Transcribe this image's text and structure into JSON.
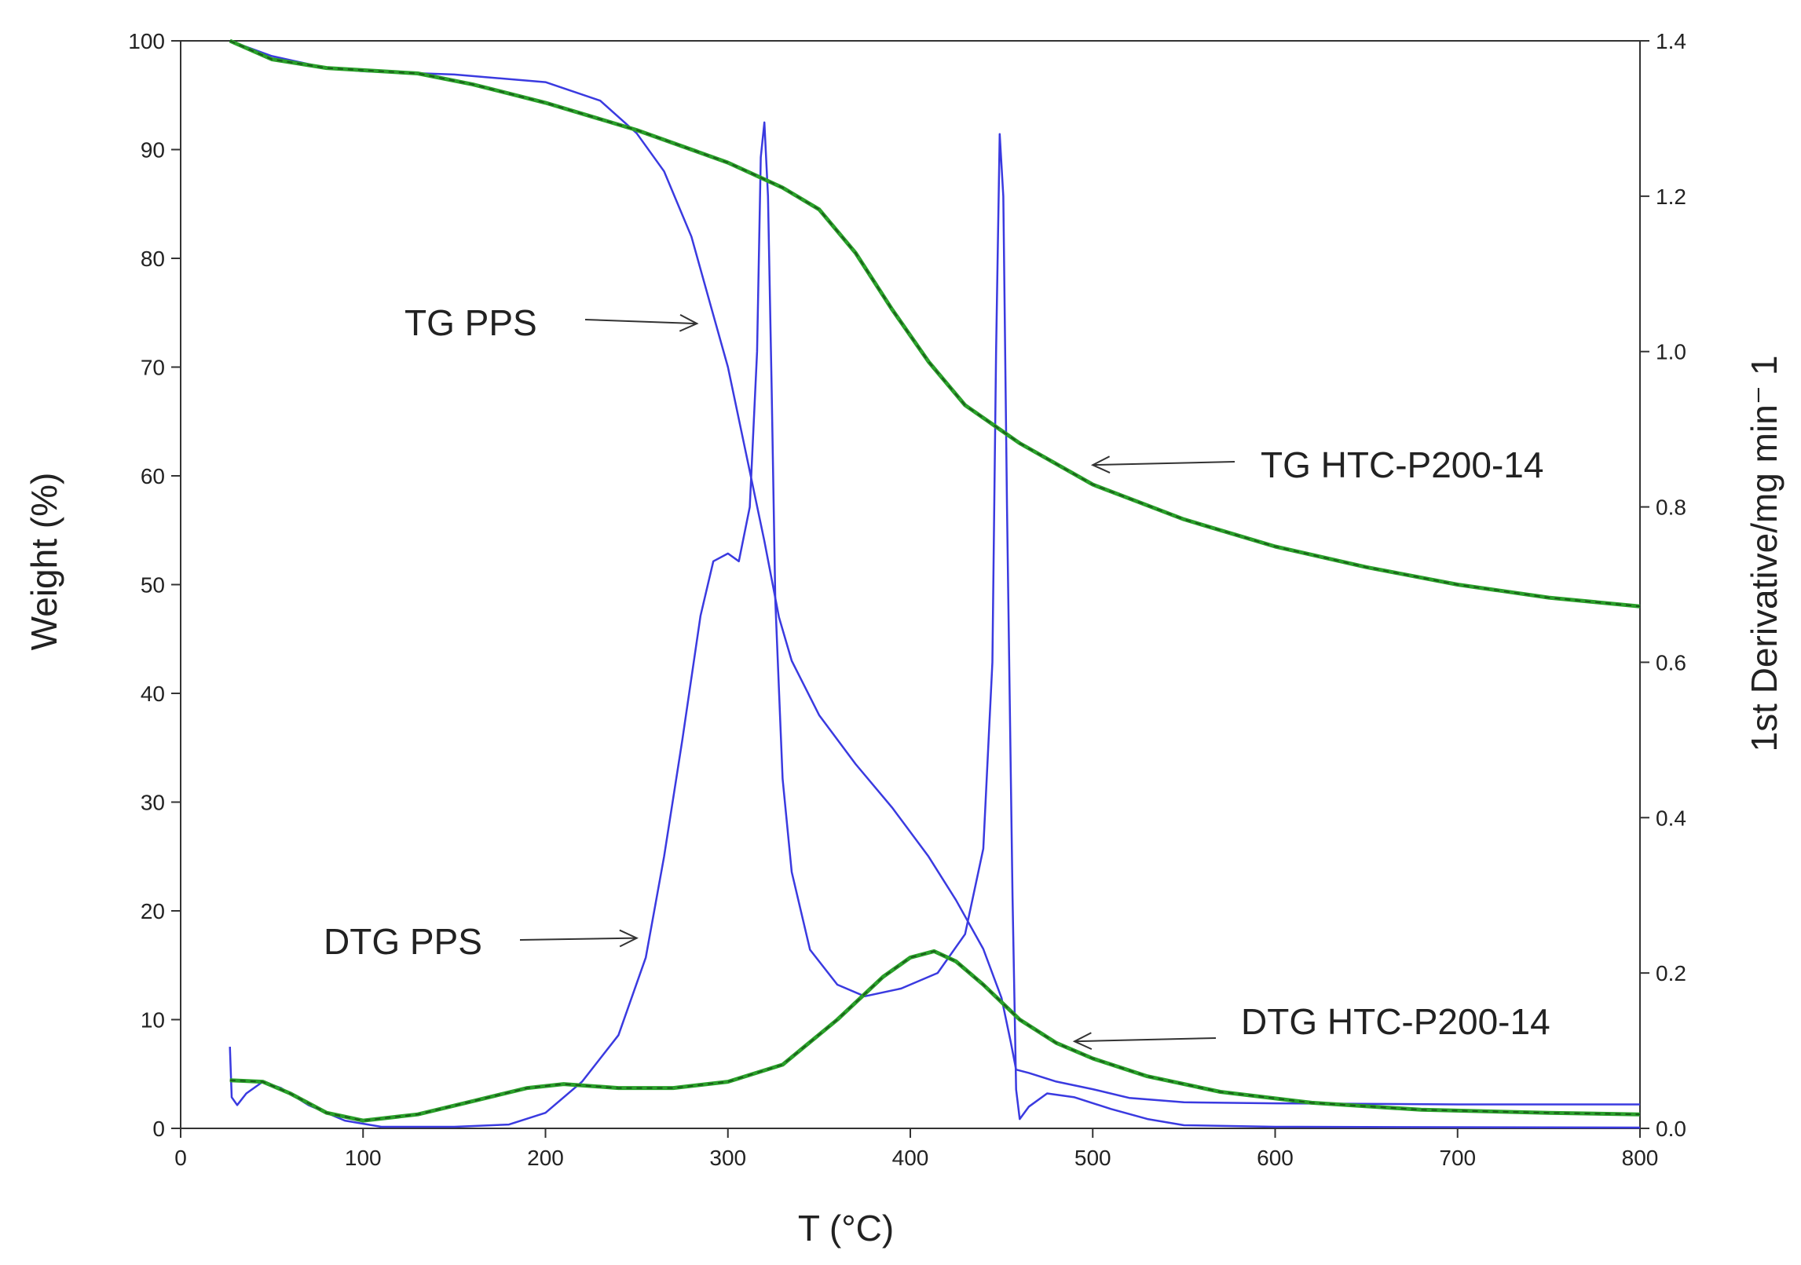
{
  "chart_data": {
    "type": "line",
    "title": "",
    "xlabel": "T (°C)",
    "ylabel": "Weight  (%)",
    "y2label": "1st Derivative/mg min⁻ 1",
    "xlim": [
      0,
      800
    ],
    "ylim": [
      0,
      100
    ],
    "y2lim": [
      0,
      1.4
    ],
    "grid": false,
    "x_ticks": [
      "0",
      "100",
      "200",
      "300",
      "400",
      "500",
      "600",
      "700",
      "800"
    ],
    "y_ticks": [
      "0",
      "10",
      "20",
      "30",
      "40",
      "50",
      "60",
      "70",
      "80",
      "90",
      "100"
    ],
    "y2_ticks": [
      "0.0",
      "0.2",
      "0.4",
      "0.6",
      "0.8",
      "1.0",
      "1.2",
      "1.4"
    ],
    "colors": {
      "pps": "#3a3ae0",
      "htc": "#2aa02a",
      "htc_dash": "#1a5a1a",
      "axis": "#333333",
      "arrow": "#333333"
    },
    "series": [
      {
        "name": "TG PPS",
        "axis": "left",
        "style": "solid",
        "points": [
          [
            27,
            100
          ],
          [
            50,
            98.6
          ],
          [
            80,
            97.5
          ],
          [
            100,
            97.2
          ],
          [
            150,
            96.9
          ],
          [
            200,
            96.2
          ],
          [
            230,
            94.5
          ],
          [
            250,
            91.5
          ],
          [
            265,
            88
          ],
          [
            280,
            82
          ],
          [
            290,
            76
          ],
          [
            300,
            70
          ],
          [
            310,
            62
          ],
          [
            320,
            54
          ],
          [
            328,
            47
          ],
          [
            335,
            43
          ],
          [
            350,
            38
          ],
          [
            370,
            33.5
          ],
          [
            390,
            29.5
          ],
          [
            410,
            25
          ],
          [
            425,
            21
          ],
          [
            440,
            16.5
          ],
          [
            450,
            12
          ],
          [
            455,
            8
          ],
          [
            458,
            5.4
          ],
          [
            465,
            5.1
          ],
          [
            480,
            4.3
          ],
          [
            500,
            3.6
          ],
          [
            520,
            2.8
          ],
          [
            550,
            2.4
          ],
          [
            600,
            2.3
          ],
          [
            700,
            2.2
          ],
          [
            800,
            2.2
          ]
        ]
      },
      {
        "name": "DTG PPS",
        "axis": "right",
        "style": "solid",
        "points": [
          [
            27,
            0.105
          ],
          [
            28,
            0.04
          ],
          [
            31,
            0.03
          ],
          [
            36,
            0.045
          ],
          [
            45,
            0.06
          ],
          [
            55,
            0.052
          ],
          [
            70,
            0.03
          ],
          [
            90,
            0.01
          ],
          [
            110,
            0.002
          ],
          [
            150,
            0.002
          ],
          [
            180,
            0.005
          ],
          [
            200,
            0.02
          ],
          [
            220,
            0.06
          ],
          [
            240,
            0.12
          ],
          [
            255,
            0.22
          ],
          [
            265,
            0.35
          ],
          [
            275,
            0.5
          ],
          [
            285,
            0.66
          ],
          [
            292,
            0.73
          ],
          [
            300,
            0.74
          ],
          [
            306,
            0.73
          ],
          [
            312,
            0.8
          ],
          [
            316,
            1.0
          ],
          [
            318,
            1.25
          ],
          [
            320,
            1.295
          ],
          [
            322,
            1.2
          ],
          [
            324,
            0.95
          ],
          [
            326,
            0.68
          ],
          [
            330,
            0.45
          ],
          [
            335,
            0.33
          ],
          [
            345,
            0.23
          ],
          [
            360,
            0.185
          ],
          [
            375,
            0.17
          ],
          [
            395,
            0.18
          ],
          [
            415,
            0.2
          ],
          [
            430,
            0.25
          ],
          [
            440,
            0.36
          ],
          [
            445,
            0.6
          ],
          [
            447,
            1.0
          ],
          [
            449,
            1.28
          ],
          [
            451,
            1.2
          ],
          [
            453,
            0.8
          ],
          [
            456,
            0.3
          ],
          [
            458,
            0.05
          ],
          [
            460,
            0.012
          ],
          [
            465,
            0.028
          ],
          [
            475,
            0.045
          ],
          [
            490,
            0.04
          ],
          [
            510,
            0.025
          ],
          [
            530,
            0.012
          ],
          [
            550,
            0.004
          ],
          [
            600,
            0.002
          ],
          [
            800,
            0.001
          ]
        ]
      },
      {
        "name": "TG HTC-P200-14",
        "axis": "left",
        "style": "dashed",
        "points": [
          [
            27,
            100
          ],
          [
            50,
            98.3
          ],
          [
            80,
            97.5
          ],
          [
            100,
            97.3
          ],
          [
            130,
            97
          ],
          [
            160,
            96
          ],
          [
            200,
            94.3
          ],
          [
            250,
            91.8
          ],
          [
            300,
            88.8
          ],
          [
            330,
            86.5
          ],
          [
            350,
            84.5
          ],
          [
            370,
            80.5
          ],
          [
            390,
            75.3
          ],
          [
            410,
            70.5
          ],
          [
            430,
            66.5
          ],
          [
            460,
            63
          ],
          [
            500,
            59.2
          ],
          [
            550,
            56
          ],
          [
            600,
            53.5
          ],
          [
            650,
            51.6
          ],
          [
            700,
            50
          ],
          [
            750,
            48.8
          ],
          [
            800,
            48
          ]
        ]
      },
      {
        "name": "DTG HTC-P200-14",
        "axis": "right",
        "style": "dashed",
        "points": [
          [
            27,
            0.062
          ],
          [
            45,
            0.06
          ],
          [
            60,
            0.045
          ],
          [
            80,
            0.02
          ],
          [
            100,
            0.01
          ],
          [
            130,
            0.018
          ],
          [
            160,
            0.035
          ],
          [
            190,
            0.052
          ],
          [
            210,
            0.057
          ],
          [
            240,
            0.052
          ],
          [
            270,
            0.052
          ],
          [
            300,
            0.06
          ],
          [
            330,
            0.082
          ],
          [
            360,
            0.14
          ],
          [
            385,
            0.195
          ],
          [
            400,
            0.22
          ],
          [
            413,
            0.228
          ],
          [
            425,
            0.215
          ],
          [
            440,
            0.185
          ],
          [
            460,
            0.14
          ],
          [
            480,
            0.11
          ],
          [
            500,
            0.09
          ],
          [
            530,
            0.067
          ],
          [
            570,
            0.047
          ],
          [
            620,
            0.033
          ],
          [
            680,
            0.024
          ],
          [
            750,
            0.02
          ],
          [
            800,
            0.018
          ]
        ]
      }
    ],
    "annotations": [
      {
        "text": "TG PPS",
        "target": [
          283,
          74
        ]
      },
      {
        "text": "DTG PPS",
        "target": [
          250,
          17.5
        ]
      },
      {
        "text": "TG HTC-P200-14",
        "target": [
          500,
          61
        ]
      },
      {
        "text": "DTG HTC-P200-14",
        "target": [
          490,
          8
        ]
      }
    ]
  }
}
